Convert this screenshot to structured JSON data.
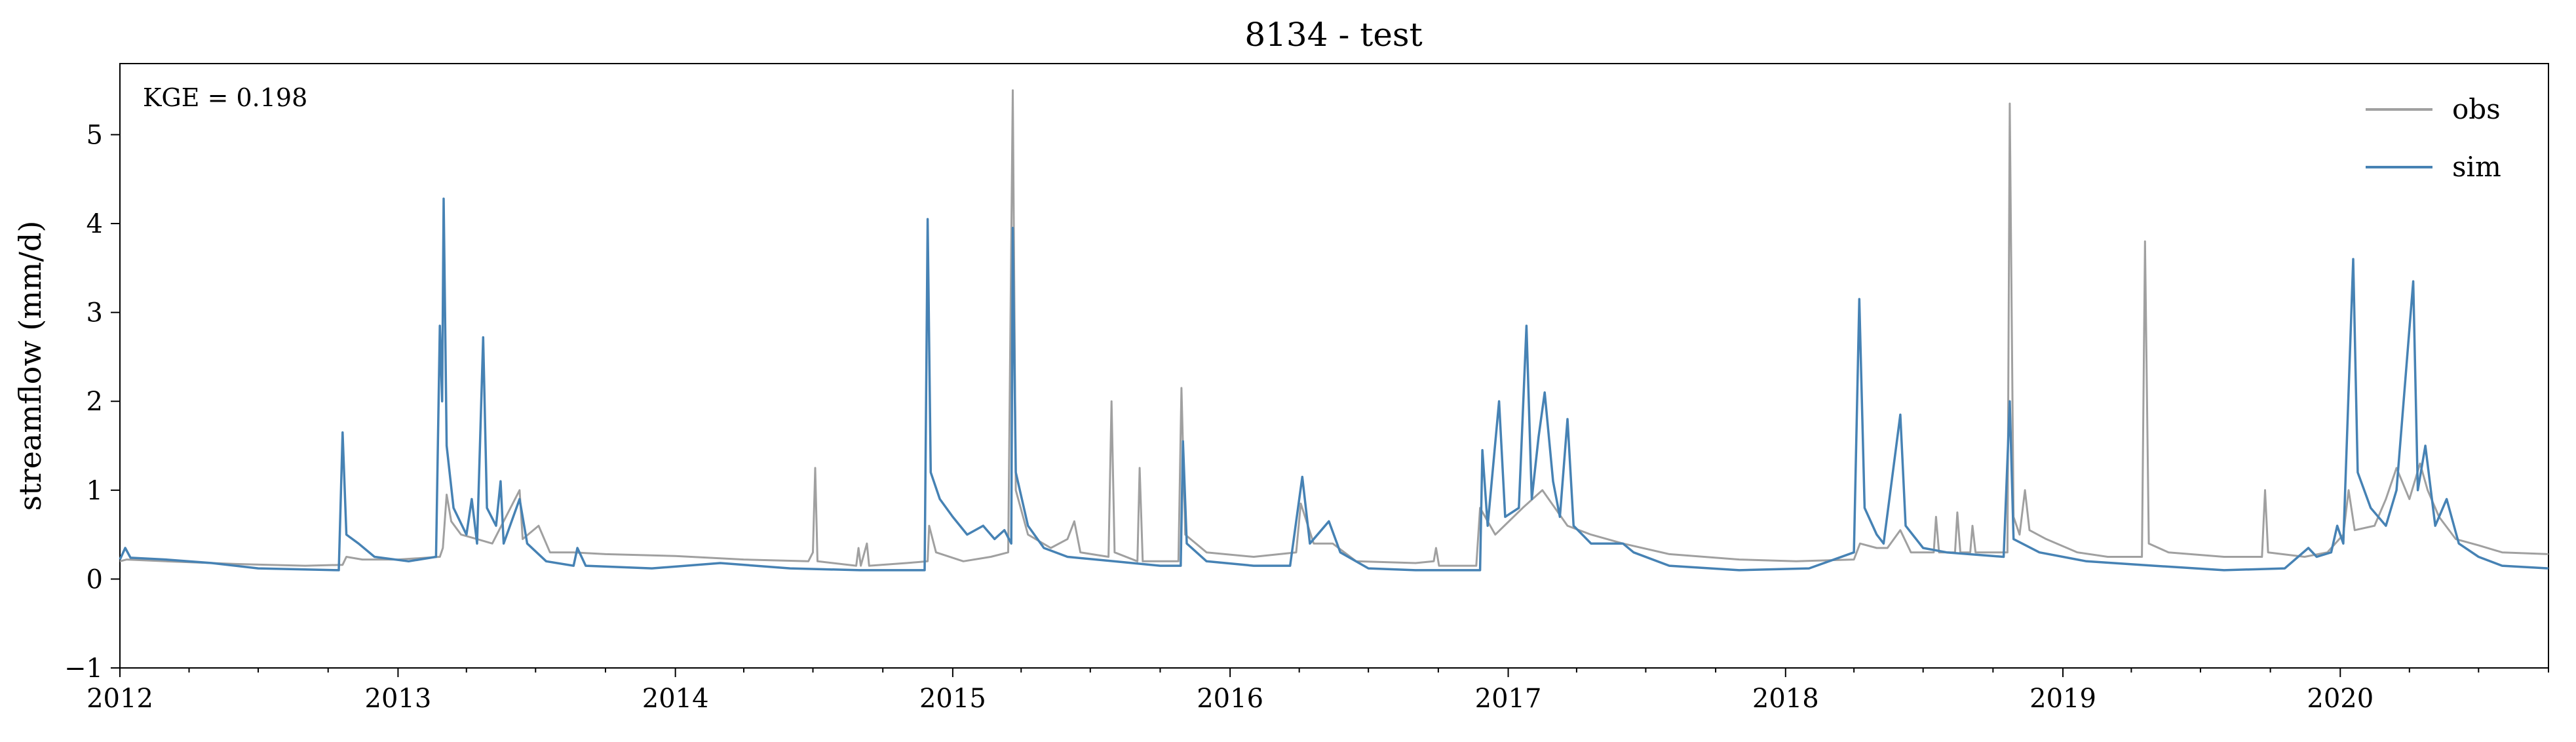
{
  "chart_data": {
    "type": "line",
    "title": "8134 - test",
    "xlabel": "",
    "ylabel": "streamflow (mm/d)",
    "annotation": "KGE = 0.198",
    "xlim": [
      "2012-01-01",
      "2020-10-01"
    ],
    "ylim": [
      -1,
      5.8
    ],
    "x_ticks": [
      "2012",
      "2013",
      "2014",
      "2015",
      "2016",
      "2017",
      "2018",
      "2019",
      "2020"
    ],
    "y_ticks": [
      -1,
      0,
      1,
      2,
      3,
      4,
      5
    ],
    "y_tick_labels": [
      "−1",
      "0",
      "1",
      "2",
      "3",
      "4",
      "5"
    ],
    "grid": false,
    "legend_position": "top-right",
    "series": [
      {
        "name": "obs",
        "color": "#a0a0a0",
        "points": [
          [
            "2012-01-01",
            0.2
          ],
          [
            "2012-01-10",
            0.22
          ],
          [
            "2012-03-01",
            0.2
          ],
          [
            "2012-06-01",
            0.17
          ],
          [
            "2012-09-01",
            0.15
          ],
          [
            "2012-10-20",
            0.16
          ],
          [
            "2012-10-25",
            0.25
          ],
          [
            "2012-11-15",
            0.22
          ],
          [
            "2013-01-01",
            0.22
          ],
          [
            "2013-02-25",
            0.25
          ],
          [
            "2013-03-01",
            0.35
          ],
          [
            "2013-03-06",
            0.95
          ],
          [
            "2013-03-12",
            0.65
          ],
          [
            "2013-03-25",
            0.5
          ],
          [
            "2013-04-15",
            0.45
          ],
          [
            "2013-05-05",
            0.4
          ],
          [
            "2013-06-10",
            1.0
          ],
          [
            "2013-06-14",
            0.45
          ],
          [
            "2013-07-05",
            0.6
          ],
          [
            "2013-07-20",
            0.3
          ],
          [
            "2013-08-20",
            0.3
          ],
          [
            "2013-10-01",
            0.28
          ],
          [
            "2014-01-01",
            0.26
          ],
          [
            "2014-04-01",
            0.22
          ],
          [
            "2014-06-25",
            0.2
          ],
          [
            "2014-07-01",
            0.3
          ],
          [
            "2014-07-04",
            1.25
          ],
          [
            "2014-07-07",
            0.2
          ],
          [
            "2014-08-27",
            0.15
          ],
          [
            "2014-08-30",
            0.35
          ],
          [
            "2014-09-02",
            0.15
          ],
          [
            "2014-09-10",
            0.4
          ],
          [
            "2014-09-13",
            0.15
          ],
          [
            "2014-11-01",
            0.18
          ],
          [
            "2014-11-29",
            0.2
          ],
          [
            "2014-12-01",
            0.6
          ],
          [
            "2014-12-10",
            0.3
          ],
          [
            "2015-01-15",
            0.2
          ],
          [
            "2015-02-20",
            0.25
          ],
          [
            "2015-03-15",
            0.3
          ],
          [
            "2015-03-21",
            5.5
          ],
          [
            "2015-03-25",
            1.0
          ],
          [
            "2015-04-10",
            0.5
          ],
          [
            "2015-05-10",
            0.35
          ],
          [
            "2015-06-01",
            0.45
          ],
          [
            "2015-06-10",
            0.65
          ],
          [
            "2015-06-18",
            0.3
          ],
          [
            "2015-07-25",
            0.25
          ],
          [
            "2015-07-29",
            2.0
          ],
          [
            "2015-08-02",
            0.3
          ],
          [
            "2015-09-01",
            0.2
          ],
          [
            "2015-09-04",
            1.25
          ],
          [
            "2015-09-08",
            0.2
          ],
          [
            "2015-10-25",
            0.2
          ],
          [
            "2015-10-29",
            2.15
          ],
          [
            "2015-11-03",
            0.5
          ],
          [
            "2015-12-01",
            0.3
          ],
          [
            "2016-02-01",
            0.25
          ],
          [
            "2016-03-28",
            0.3
          ],
          [
            "2016-04-03",
            0.85
          ],
          [
            "2016-04-20",
            0.4
          ],
          [
            "2016-05-15",
            0.4
          ],
          [
            "2016-06-15",
            0.2
          ],
          [
            "2016-09-01",
            0.18
          ],
          [
            "2016-09-25",
            0.2
          ],
          [
            "2016-09-28",
            0.35
          ],
          [
            "2016-10-02",
            0.15
          ],
          [
            "2016-11-20",
            0.15
          ],
          [
            "2016-11-25",
            0.8
          ],
          [
            "2016-12-15",
            0.5
          ],
          [
            "2017-01-20",
            0.8
          ],
          [
            "2017-02-15",
            1.0
          ],
          [
            "2017-03-20",
            0.6
          ],
          [
            "2017-04-20",
            0.5
          ],
          [
            "2017-06-01",
            0.4
          ],
          [
            "2017-08-01",
            0.28
          ],
          [
            "2017-11-01",
            0.22
          ],
          [
            "2018-01-15",
            0.2
          ],
          [
            "2018-04-01",
            0.22
          ],
          [
            "2018-04-09",
            0.4
          ],
          [
            "2018-05-01",
            0.35
          ],
          [
            "2018-05-15",
            0.35
          ],
          [
            "2018-06-01",
            0.55
          ],
          [
            "2018-06-15",
            0.3
          ],
          [
            "2018-07-15",
            0.3
          ],
          [
            "2018-07-18",
            0.7
          ],
          [
            "2018-07-22",
            0.3
          ],
          [
            "2018-08-12",
            0.3
          ],
          [
            "2018-08-15",
            0.75
          ],
          [
            "2018-08-19",
            0.3
          ],
          [
            "2018-09-01",
            0.3
          ],
          [
            "2018-09-04",
            0.6
          ],
          [
            "2018-09-08",
            0.3
          ],
          [
            "2018-10-20",
            0.3
          ],
          [
            "2018-10-23",
            5.35
          ],
          [
            "2018-10-28",
            0.7
          ],
          [
            "2018-11-05",
            0.5
          ],
          [
            "2018-11-12",
            1.0
          ],
          [
            "2018-11-18",
            0.55
          ],
          [
            "2018-12-10",
            0.45
          ],
          [
            "2019-01-20",
            0.3
          ],
          [
            "2019-03-01",
            0.25
          ],
          [
            "2019-04-15",
            0.25
          ],
          [
            "2019-04-19",
            3.8
          ],
          [
            "2019-04-24",
            0.4
          ],
          [
            "2019-05-20",
            0.3
          ],
          [
            "2019-08-01",
            0.25
          ],
          [
            "2019-09-20",
            0.25
          ],
          [
            "2019-09-24",
            1.0
          ],
          [
            "2019-09-28",
            0.3
          ],
          [
            "2019-11-15",
            0.25
          ],
          [
            "2019-12-15",
            0.3
          ],
          [
            "2020-01-05",
            0.5
          ],
          [
            "2020-01-12",
            1.0
          ],
          [
            "2020-01-20",
            0.55
          ],
          [
            "2020-02-15",
            0.6
          ],
          [
            "2020-03-01",
            0.9
          ],
          [
            "2020-03-15",
            1.25
          ],
          [
            "2020-04-01",
            0.9
          ],
          [
            "2020-04-15",
            1.3
          ],
          [
            "2020-04-25",
            1.0
          ],
          [
            "2020-05-10",
            0.7
          ],
          [
            "2020-06-01",
            0.45
          ],
          [
            "2020-07-01",
            0.38
          ],
          [
            "2020-08-01",
            0.3
          ],
          [
            "2020-10-01",
            0.28
          ]
        ]
      },
      {
        "name": "sim",
        "color": "#4682b4",
        "points": [
          [
            "2012-01-01",
            0.22
          ],
          [
            "2012-01-08",
            0.35
          ],
          [
            "2012-01-15",
            0.24
          ],
          [
            "2012-03-01",
            0.22
          ],
          [
            "2012-05-01",
            0.18
          ],
          [
            "2012-07-01",
            0.12
          ],
          [
            "2012-10-15",
            0.1
          ],
          [
            "2012-10-20",
            1.65
          ],
          [
            "2012-10-25",
            0.5
          ],
          [
            "2012-11-10",
            0.4
          ],
          [
            "2012-12-01",
            0.25
          ],
          [
            "2013-01-15",
            0.2
          ],
          [
            "2013-02-20",
            0.25
          ],
          [
            "2013-02-25",
            2.85
          ],
          [
            "2013-02-28",
            2.0
          ],
          [
            "2013-03-02",
            4.28
          ],
          [
            "2013-03-06",
            1.5
          ],
          [
            "2013-03-15",
            0.8
          ],
          [
            "2013-04-01",
            0.5
          ],
          [
            "2013-04-08",
            0.9
          ],
          [
            "2013-04-15",
            0.4
          ],
          [
            "2013-04-23",
            2.72
          ],
          [
            "2013-04-28",
            0.8
          ],
          [
            "2013-05-10",
            0.6
          ],
          [
            "2013-05-16",
            1.1
          ],
          [
            "2013-05-20",
            0.4
          ],
          [
            "2013-06-10",
            0.9
          ],
          [
            "2013-06-20",
            0.4
          ],
          [
            "2013-07-15",
            0.2
          ],
          [
            "2013-08-20",
            0.15
          ],
          [
            "2013-08-25",
            0.35
          ],
          [
            "2013-09-05",
            0.15
          ],
          [
            "2013-12-01",
            0.12
          ],
          [
            "2014-03-01",
            0.18
          ],
          [
            "2014-06-01",
            0.12
          ],
          [
            "2014-09-01",
            0.1
          ],
          [
            "2014-11-25",
            0.1
          ],
          [
            "2014-11-29",
            4.05
          ],
          [
            "2014-12-03",
            1.2
          ],
          [
            "2014-12-15",
            0.9
          ],
          [
            "2015-01-01",
            0.7
          ],
          [
            "2015-01-20",
            0.5
          ],
          [
            "2015-02-10",
            0.6
          ],
          [
            "2015-02-25",
            0.45
          ],
          [
            "2015-03-10",
            0.55
          ],
          [
            "2015-03-19",
            0.4
          ],
          [
            "2015-03-21",
            3.95
          ],
          [
            "2015-03-25",
            1.2
          ],
          [
            "2015-04-10",
            0.6
          ],
          [
            "2015-05-01",
            0.35
          ],
          [
            "2015-06-01",
            0.25
          ],
          [
            "2015-08-01",
            0.2
          ],
          [
            "2015-10-01",
            0.15
          ],
          [
            "2015-10-28",
            0.15
          ],
          [
            "2015-10-31",
            1.55
          ],
          [
            "2015-11-05",
            0.4
          ],
          [
            "2015-12-01",
            0.2
          ],
          [
            "2016-02-01",
            0.15
          ],
          [
            "2016-03-20",
            0.15
          ],
          [
            "2016-04-05",
            1.15
          ],
          [
            "2016-04-15",
            0.4
          ],
          [
            "2016-05-10",
            0.65
          ],
          [
            "2016-05-25",
            0.3
          ],
          [
            "2016-07-01",
            0.12
          ],
          [
            "2016-09-01",
            0.1
          ],
          [
            "2016-11-25",
            0.1
          ],
          [
            "2016-11-28",
            1.45
          ],
          [
            "2016-12-05",
            0.6
          ],
          [
            "2016-12-20",
            2.0
          ],
          [
            "2016-12-28",
            0.7
          ],
          [
            "2017-01-15",
            0.8
          ],
          [
            "2017-01-25",
            2.85
          ],
          [
            "2017-02-01",
            0.9
          ],
          [
            "2017-02-10",
            1.6
          ],
          [
            "2017-02-18",
            2.1
          ],
          [
            "2017-03-01",
            1.1
          ],
          [
            "2017-03-10",
            0.7
          ],
          [
            "2017-03-20",
            1.8
          ],
          [
            "2017-03-28",
            0.6
          ],
          [
            "2017-04-20",
            0.4
          ],
          [
            "2017-06-01",
            0.4
          ],
          [
            "2017-06-15",
            0.3
          ],
          [
            "2017-08-01",
            0.15
          ],
          [
            "2017-11-01",
            0.1
          ],
          [
            "2018-02-01",
            0.12
          ],
          [
            "2018-04-01",
            0.3
          ],
          [
            "2018-04-08",
            3.15
          ],
          [
            "2018-04-15",
            0.8
          ],
          [
            "2018-05-01",
            0.5
          ],
          [
            "2018-05-10",
            0.4
          ],
          [
            "2018-06-01",
            1.85
          ],
          [
            "2018-06-08",
            0.6
          ],
          [
            "2018-07-01",
            0.35
          ],
          [
            "2018-08-01",
            0.3
          ],
          [
            "2018-10-15",
            0.25
          ],
          [
            "2018-10-23",
            2.0
          ],
          [
            "2018-10-28",
            0.45
          ],
          [
            "2018-12-01",
            0.3
          ],
          [
            "2019-02-01",
            0.2
          ],
          [
            "2019-05-01",
            0.15
          ],
          [
            "2019-08-01",
            0.1
          ],
          [
            "2019-10-20",
            0.12
          ],
          [
            "2019-11-20",
            0.35
          ],
          [
            "2019-12-01",
            0.25
          ],
          [
            "2019-12-20",
            0.3
          ],
          [
            "2019-12-28",
            0.6
          ],
          [
            "2020-01-05",
            0.4
          ],
          [
            "2020-01-18",
            3.6
          ],
          [
            "2020-01-24",
            1.2
          ],
          [
            "2020-02-10",
            0.8
          ],
          [
            "2020-03-01",
            0.6
          ],
          [
            "2020-03-15",
            1.0
          ],
          [
            "2020-04-06",
            3.35
          ],
          [
            "2020-04-12",
            1.0
          ],
          [
            "2020-04-22",
            1.5
          ],
          [
            "2020-05-05",
            0.6
          ],
          [
            "2020-05-20",
            0.9
          ],
          [
            "2020-06-05",
            0.4
          ],
          [
            "2020-07-01",
            0.25
          ],
          [
            "2020-08-01",
            0.15
          ],
          [
            "2020-10-01",
            0.12
          ]
        ]
      }
    ]
  }
}
